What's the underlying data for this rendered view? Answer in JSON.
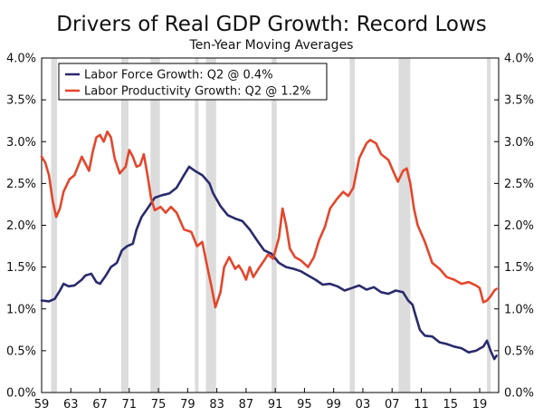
{
  "chart_data": {
    "type": "line",
    "title": "Drivers of Real GDP Growth: Record Lows",
    "subtitle": "Ten-Year Moving Averages",
    "xlabel": "",
    "ylabel": "",
    "xlim": [
      1959,
      2021.6
    ],
    "ylim": [
      0,
      4
    ],
    "grid": false,
    "y_ticks": [
      0,
      0.5,
      1.0,
      1.5,
      2.0,
      2.5,
      3.0,
      3.5,
      4.0
    ],
    "y_tick_labels": [
      "0.0%",
      "0.5%",
      "1.0%",
      "1.5%",
      "2.0%",
      "2.5%",
      "3.0%",
      "3.5%",
      "4.0%"
    ],
    "x_ticks": [
      1959,
      1963,
      1967,
      1971,
      1975,
      1979,
      1983,
      1987,
      1991,
      1995,
      1999,
      2003,
      2007,
      2011,
      2015,
      2019
    ],
    "x_tick_labels": [
      "59",
      "63",
      "67",
      "71",
      "75",
      "79",
      "83",
      "87",
      "91",
      "95",
      "99",
      "03",
      "07",
      "11",
      "15",
      "19"
    ],
    "legend_position": "top-left",
    "recessions": [
      [
        1960.3,
        1961.1
      ],
      [
        1969.9,
        1970.9
      ],
      [
        1973.9,
        1975.2
      ],
      [
        1980.0,
        1980.5
      ],
      [
        1981.5,
        1982.9
      ],
      [
        1990.5,
        1991.2
      ],
      [
        2001.2,
        2001.9
      ],
      [
        2007.9,
        2009.5
      ],
      [
        2020.0,
        2020.5
      ]
    ],
    "series": [
      {
        "name": "Labor Force Growth: Q2 @ 0.4%",
        "color": "#2a2a6e",
        "points": [
          [
            1959.0,
            1.1
          ],
          [
            1960.0,
            1.09
          ],
          [
            1960.8,
            1.12
          ],
          [
            1961.5,
            1.22
          ],
          [
            1962.0,
            1.3
          ],
          [
            1962.7,
            1.27
          ],
          [
            1963.5,
            1.28
          ],
          [
            1964.5,
            1.35
          ],
          [
            1965.0,
            1.4
          ],
          [
            1965.8,
            1.42
          ],
          [
            1966.5,
            1.32
          ],
          [
            1967.0,
            1.3
          ],
          [
            1967.8,
            1.4
          ],
          [
            1968.5,
            1.5
          ],
          [
            1969.3,
            1.55
          ],
          [
            1970.0,
            1.7
          ],
          [
            1970.7,
            1.75
          ],
          [
            1971.5,
            1.78
          ],
          [
            1972.0,
            1.95
          ],
          [
            1972.7,
            2.1
          ],
          [
            1973.5,
            2.2
          ],
          [
            1974.5,
            2.33
          ],
          [
            1975.5,
            2.36
          ],
          [
            1976.5,
            2.38
          ],
          [
            1977.5,
            2.45
          ],
          [
            1978.5,
            2.6
          ],
          [
            1979.2,
            2.7
          ],
          [
            1980.0,
            2.65
          ],
          [
            1981.0,
            2.6
          ],
          [
            1982.0,
            2.5
          ],
          [
            1982.5,
            2.38
          ],
          [
            1983.5,
            2.23
          ],
          [
            1984.5,
            2.12
          ],
          [
            1985.5,
            2.08
          ],
          [
            1986.5,
            2.05
          ],
          [
            1987.5,
            1.95
          ],
          [
            1988.5,
            1.82
          ],
          [
            1989.5,
            1.7
          ],
          [
            1990.5,
            1.66
          ],
          [
            1991.5,
            1.55
          ],
          [
            1992.5,
            1.5
          ],
          [
            1993.5,
            1.48
          ],
          [
            1994.5,
            1.45
          ],
          [
            1995.5,
            1.4
          ],
          [
            1996.5,
            1.35
          ],
          [
            1997.5,
            1.29
          ],
          [
            1998.5,
            1.3
          ],
          [
            1999.5,
            1.27
          ],
          [
            2000.5,
            1.22
          ],
          [
            2001.5,
            1.25
          ],
          [
            2002.5,
            1.28
          ],
          [
            2003.5,
            1.23
          ],
          [
            2004.5,
            1.26
          ],
          [
            2005.5,
            1.2
          ],
          [
            2006.5,
            1.18
          ],
          [
            2007.5,
            1.22
          ],
          [
            2008.5,
            1.2
          ],
          [
            2009.2,
            1.1
          ],
          [
            2009.8,
            1.05
          ],
          [
            2010.3,
            0.9
          ],
          [
            2010.8,
            0.75
          ],
          [
            2011.5,
            0.68
          ],
          [
            2012.5,
            0.67
          ],
          [
            2013.5,
            0.6
          ],
          [
            2014.5,
            0.58
          ],
          [
            2015.5,
            0.55
          ],
          [
            2016.5,
            0.53
          ],
          [
            2017.5,
            0.48
          ],
          [
            2018.5,
            0.5
          ],
          [
            2019.5,
            0.55
          ],
          [
            2020.0,
            0.62
          ],
          [
            2020.5,
            0.5
          ],
          [
            2021.0,
            0.4
          ],
          [
            2021.3,
            0.44
          ]
        ]
      },
      {
        "name": "Labor Productivity Growth: Q2 @ 1.2%",
        "color": "#e4462b",
        "points": [
          [
            1959.0,
            2.82
          ],
          [
            1959.5,
            2.75
          ],
          [
            1960.0,
            2.6
          ],
          [
            1960.5,
            2.3
          ],
          [
            1961.0,
            2.1
          ],
          [
            1961.5,
            2.2
          ],
          [
            1962.0,
            2.4
          ],
          [
            1962.8,
            2.55
          ],
          [
            1963.5,
            2.6
          ],
          [
            1964.5,
            2.82
          ],
          [
            1965.5,
            2.65
          ],
          [
            1966.0,
            2.88
          ],
          [
            1966.5,
            3.05
          ],
          [
            1967.0,
            3.08
          ],
          [
            1967.5,
            3.0
          ],
          [
            1968.0,
            3.12
          ],
          [
            1968.5,
            3.05
          ],
          [
            1969.0,
            2.8
          ],
          [
            1969.7,
            2.62
          ],
          [
            1970.5,
            2.7
          ],
          [
            1971.0,
            2.9
          ],
          [
            1971.5,
            2.82
          ],
          [
            1972.0,
            2.7
          ],
          [
            1972.5,
            2.72
          ],
          [
            1973.0,
            2.85
          ],
          [
            1973.5,
            2.6
          ],
          [
            1974.0,
            2.32
          ],
          [
            1974.5,
            2.18
          ],
          [
            1975.3,
            2.22
          ],
          [
            1976.0,
            2.15
          ],
          [
            1976.7,
            2.22
          ],
          [
            1977.5,
            2.15
          ],
          [
            1978.5,
            1.95
          ],
          [
            1979.5,
            1.92
          ],
          [
            1980.3,
            1.75
          ],
          [
            1981.0,
            1.8
          ],
          [
            1981.7,
            1.5
          ],
          [
            1982.3,
            1.25
          ],
          [
            1982.8,
            1.02
          ],
          [
            1983.5,
            1.2
          ],
          [
            1984.0,
            1.5
          ],
          [
            1984.7,
            1.62
          ],
          [
            1985.5,
            1.48
          ],
          [
            1986.0,
            1.52
          ],
          [
            1986.5,
            1.45
          ],
          [
            1987.0,
            1.35
          ],
          [
            1987.5,
            1.5
          ],
          [
            1988.0,
            1.38
          ],
          [
            1988.7,
            1.48
          ],
          [
            1989.5,
            1.58
          ],
          [
            1990.0,
            1.65
          ],
          [
            1990.7,
            1.6
          ],
          [
            1991.5,
            1.85
          ],
          [
            1992.0,
            2.2
          ],
          [
            1992.5,
            2.0
          ],
          [
            1993.0,
            1.72
          ],
          [
            1993.7,
            1.62
          ],
          [
            1994.5,
            1.58
          ],
          [
            1995.5,
            1.5
          ],
          [
            1996.3,
            1.62
          ],
          [
            1997.0,
            1.82
          ],
          [
            1997.8,
            1.98
          ],
          [
            1998.5,
            2.2
          ],
          [
            1999.5,
            2.32
          ],
          [
            2000.3,
            2.4
          ],
          [
            2001.0,
            2.35
          ],
          [
            2001.7,
            2.45
          ],
          [
            2002.5,
            2.8
          ],
          [
            2003.5,
            2.98
          ],
          [
            2004.0,
            3.02
          ],
          [
            2004.8,
            2.98
          ],
          [
            2005.5,
            2.85
          ],
          [
            2006.5,
            2.78
          ],
          [
            2007.3,
            2.62
          ],
          [
            2007.8,
            2.52
          ],
          [
            2008.5,
            2.65
          ],
          [
            2009.0,
            2.68
          ],
          [
            2009.5,
            2.5
          ],
          [
            2010.0,
            2.2
          ],
          [
            2010.5,
            2.0
          ],
          [
            2011.5,
            1.8
          ],
          [
            2012.5,
            1.55
          ],
          [
            2013.5,
            1.48
          ],
          [
            2014.5,
            1.38
          ],
          [
            2015.5,
            1.35
          ],
          [
            2016.5,
            1.3
          ],
          [
            2017.5,
            1.32
          ],
          [
            2018.5,
            1.28
          ],
          [
            2019.0,
            1.25
          ],
          [
            2019.5,
            1.08
          ],
          [
            2020.0,
            1.1
          ],
          [
            2020.5,
            1.15
          ],
          [
            2021.0,
            1.22
          ],
          [
            2021.3,
            1.24
          ]
        ]
      }
    ]
  }
}
